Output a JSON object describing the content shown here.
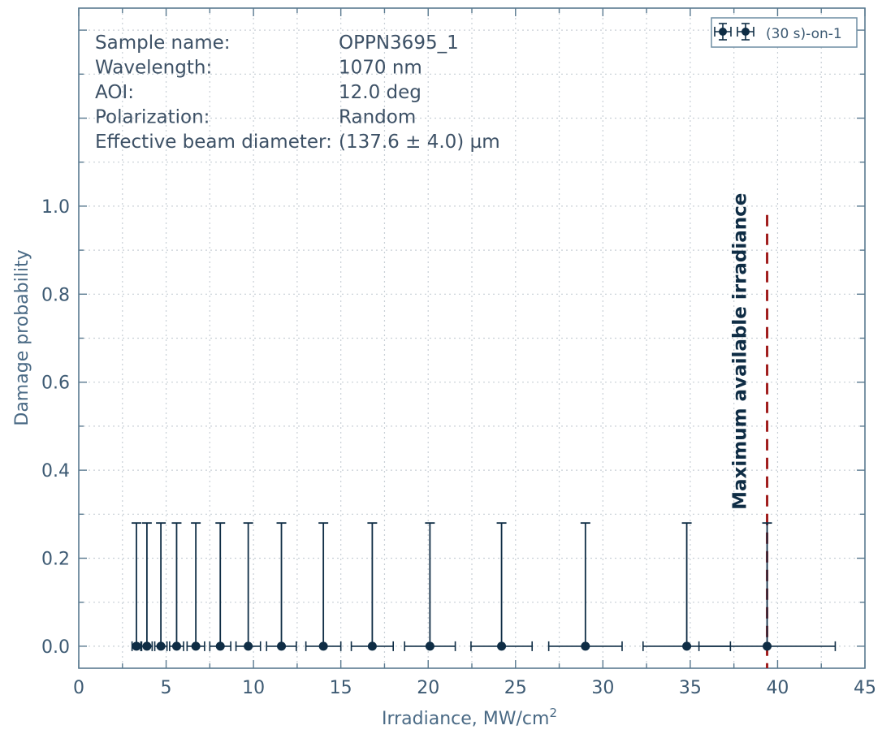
{
  "chart_data": {
    "type": "scatter",
    "xlabel": "Irradiance, MW/cm",
    "xlabel_sup": "2",
    "ylabel": "Damage probability",
    "xlim": [
      0,
      45
    ],
    "ylim": [
      -0.05,
      1.45
    ],
    "x_ticks": [
      0,
      5,
      10,
      15,
      20,
      25,
      30,
      35,
      40,
      45
    ],
    "x_tick_labels": [
      "0",
      "5",
      "10",
      "15",
      "20",
      "25",
      "30",
      "35",
      "40",
      "45"
    ],
    "y_ticks": [
      0.0,
      0.2,
      0.4,
      0.6,
      0.8,
      1.0
    ],
    "y_tick_labels": [
      "0.0",
      "0.2",
      "0.4",
      "0.6",
      "0.8",
      "1.0"
    ],
    "grid": true,
    "legend_position": "top-right",
    "series": [
      {
        "name": "(30 s)-on-1",
        "color": "#0f2d45",
        "points": [
          {
            "x": 3.3,
            "y": 0.0,
            "x_err": 0.25,
            "y_err_upper": 0.28
          },
          {
            "x": 3.9,
            "y": 0.0,
            "x_err": 0.3,
            "y_err_upper": 0.28
          },
          {
            "x": 4.7,
            "y": 0.0,
            "x_err": 0.35,
            "y_err_upper": 0.28
          },
          {
            "x": 5.6,
            "y": 0.0,
            "x_err": 0.4,
            "y_err_upper": 0.28
          },
          {
            "x": 6.7,
            "y": 0.0,
            "x_err": 0.5,
            "y_err_upper": 0.28
          },
          {
            "x": 8.1,
            "y": 0.0,
            "x_err": 0.6,
            "y_err_upper": 0.28
          },
          {
            "x": 9.7,
            "y": 0.0,
            "x_err": 0.7,
            "y_err_upper": 0.28
          },
          {
            "x": 11.6,
            "y": 0.0,
            "x_err": 0.85,
            "y_err_upper": 0.28
          },
          {
            "x": 14.0,
            "y": 0.0,
            "x_err": 1.0,
            "y_err_upper": 0.28
          },
          {
            "x": 16.8,
            "y": 0.0,
            "x_err": 1.2,
            "y_err_upper": 0.28
          },
          {
            "x": 20.1,
            "y": 0.0,
            "x_err": 1.45,
            "y_err_upper": 0.28
          },
          {
            "x": 24.2,
            "y": 0.0,
            "x_err": 1.75,
            "y_err_upper": 0.28
          },
          {
            "x": 29.0,
            "y": 0.0,
            "x_err": 2.1,
            "y_err_upper": 0.28
          },
          {
            "x": 34.8,
            "y": 0.0,
            "x_err": 2.5,
            "y_err_upper": 0.28
          },
          {
            "x": 39.4,
            "y": 0.0,
            "x_err": 3.9,
            "y_err_upper": 0.28
          }
        ]
      }
    ],
    "reference_line": {
      "x": 39.4,
      "y_top": 0.98,
      "color": "#a01c1c",
      "label": "Maximum available irradiance"
    },
    "info_block": [
      {
        "label": "Sample name:",
        "value": "OPPN3695_1"
      },
      {
        "label": "Wavelength:",
        "value": "1070 nm"
      },
      {
        "label": "AOI:",
        "value": "12.0 deg"
      },
      {
        "label": "Polarization:",
        "value": "Random"
      },
      {
        "label": "Effective beam diameter:",
        "value": "(137.6 ± 4.0) µm"
      }
    ],
    "colors": {
      "axis": "#5a7a90",
      "grid": "#c8cfd6",
      "tick_label": "#3d5a73"
    }
  }
}
